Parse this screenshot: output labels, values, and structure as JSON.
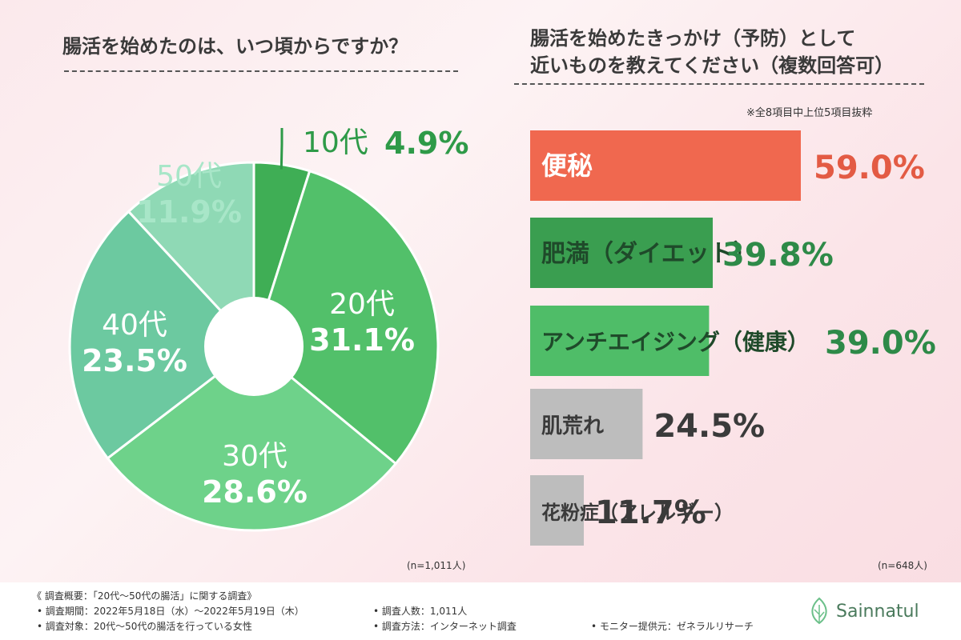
{
  "left_title": "腸活を始めたのは、いつ頃からですか？",
  "right_title_line1": "腸活を始めたきっかけ（予防）として",
  "right_title_line2": "近いものを教えてください（複数回答可）",
  "right_note": "※全8項目中上位5項目抜粋",
  "left_n": "(n=1,011人)",
  "right_n": "(n=648人)",
  "footer": {
    "overview": "《 調査概要：「20代〜50代の腸活」に関する調査》",
    "period": "• 調査期間：2022年5月18日（水）〜2022年5月19日（木）",
    "target": "• 調査対象：20代〜50代の腸活を行っている女性",
    "count": "• 調査人数：1,011人",
    "method": "• 調査方法：インターネット調査",
    "provider": "• モニター提供元：ゼネラルリサーチ"
  },
  "brand": "Sainnatul",
  "colors": {
    "leaf": "#6cc08a",
    "brand_text": "#4a7a5c"
  },
  "chart_data": [
    {
      "type": "pie",
      "title": "腸活を始めたのは、いつ頃からですか？",
      "categories": [
        "10代",
        "20代",
        "30代",
        "40代",
        "50代"
      ],
      "values": [
        4.9,
        31.1,
        28.6,
        23.5,
        11.9
      ],
      "value_labels": [
        "4.9%",
        "31.1%",
        "28.6%",
        "23.5%",
        "11.9%"
      ],
      "colors": [
        "#3fae55",
        "#52c06a",
        "#6ed28a",
        "#6cc9a0",
        "#8fd9b5"
      ],
      "label_colors": [
        "#2e9a48",
        "#ffffff",
        "#ffffff",
        "#ffffff",
        "#a8e6c8"
      ],
      "n": "(n=1,011人)"
    },
    {
      "type": "bar",
      "title": "腸活を始めたきっかけ（予防）として近いものを教えてください（複数回答可）",
      "categories": [
        "便秘",
        "肥満（ダイエット）",
        "アンチエイジング（健康）",
        "肌荒れ",
        "花粉症（アレルギー）"
      ],
      "values": [
        59.0,
        39.8,
        39.0,
        24.5,
        11.7
      ],
      "value_labels": [
        "59.0%",
        "39.8%",
        "39.0%",
        "24.5%",
        "11.7%"
      ],
      "bar_colors": [
        "#f0684f",
        "#3a9e50",
        "#4fbd68",
        "#bdbdbd",
        "#bdbdbd"
      ],
      "label_colors": [
        "#ffffff",
        "#1f4a2a",
        "#1f4a2a",
        "#3a3a3a",
        "#3a3a3a"
      ],
      "value_colors": [
        "#e35b44",
        "#2e8a48",
        "#2e8a48",
        "#3a3a3a",
        "#3a3a3a"
      ],
      "xlim": [
        0,
        59.0
      ],
      "n": "(n=648人)"
    }
  ]
}
